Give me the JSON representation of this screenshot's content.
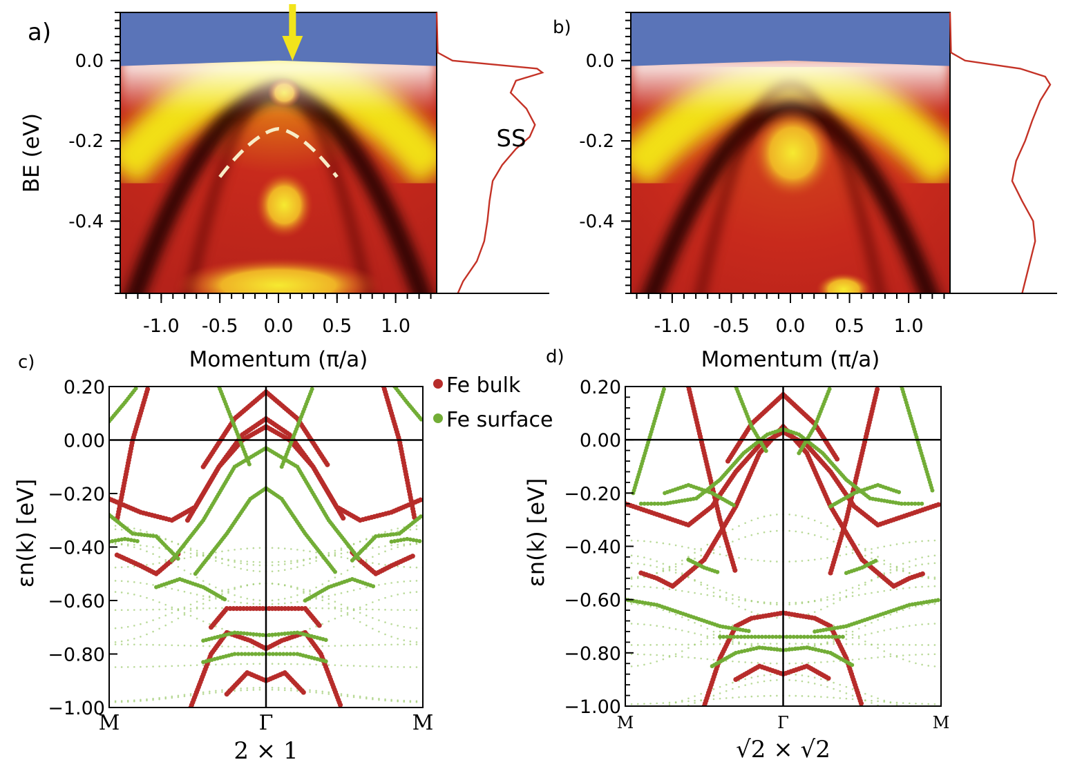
{
  "chart_data": [
    {
      "panel": "a)",
      "type": "heatmap",
      "xlabel": "Momentum (π/a)",
      "ylabel": "BE (eV)",
      "xlim": [
        -1.35,
        1.35
      ],
      "ylim": [
        -0.58,
        0.12
      ],
      "xticks": [
        "-1.0",
        "-0.5",
        "0.0",
        "0.5",
        "1.0"
      ],
      "xtick_values": [
        -1.0,
        -0.5,
        0.0,
        0.5,
        1.0
      ],
      "yticks": [
        "0.0",
        "-0.2",
        "-0.4"
      ],
      "ytick_values": [
        0.0,
        -0.2,
        -0.4
      ],
      "colormap": [
        "#5a74b8",
        "#ffffff",
        "#f4ea12",
        "#cc2a1c",
        "#1a0202"
      ],
      "annotation": "SS",
      "arrow_color": "#f2e41b",
      "arrow_x": 0.12,
      "dashed_arc": {
        "k_min": -0.5,
        "k_max": 0.5,
        "e_top": -0.17,
        "e_ends": -0.29
      },
      "edc_color": "#c43226",
      "edc": {
        "be": [
          0.12,
          0.02,
          0.0,
          -0.02,
          -0.03,
          -0.05,
          -0.08,
          -0.12,
          -0.16,
          -0.19,
          -0.22,
          -0.26,
          -0.3,
          -0.35,
          -0.4,
          -0.45,
          -0.5,
          -0.55,
          -0.58
        ],
        "intensity": [
          0.0,
          0.01,
          0.15,
          0.95,
          1.0,
          0.75,
          0.7,
          0.85,
          0.93,
          0.88,
          0.75,
          0.62,
          0.53,
          0.5,
          0.48,
          0.45,
          0.38,
          0.25,
          0.2
        ]
      }
    },
    {
      "panel": "b)",
      "type": "heatmap",
      "xlabel": "Momentum (π/a)",
      "ylabel": "",
      "xlim": [
        -1.35,
        1.35
      ],
      "ylim": [
        -0.58,
        0.12
      ],
      "xticks": [
        "-1.0",
        "-0.5",
        "0.0",
        "0.5",
        "1.0"
      ],
      "xtick_values": [
        -1.0,
        -0.5,
        0.0,
        0.5,
        1.0
      ],
      "yticks": [
        "0.0",
        "-0.2",
        "-0.4"
      ],
      "ytick_values": [
        0.0,
        -0.2,
        -0.4
      ],
      "colormap": [
        "#5a74b8",
        "#ffffff",
        "#f4ea12",
        "#cc2a1c",
        "#1a0202"
      ],
      "edc_color": "#c43226",
      "edc": {
        "be": [
          0.12,
          0.02,
          0.0,
          -0.02,
          -0.04,
          -0.06,
          -0.1,
          -0.15,
          -0.2,
          -0.25,
          -0.3,
          -0.35,
          -0.4,
          -0.45,
          -0.5,
          -0.55,
          -0.58
        ],
        "intensity": [
          0.0,
          0.01,
          0.15,
          0.7,
          0.95,
          1.0,
          0.9,
          0.82,
          0.75,
          0.66,
          0.62,
          0.72,
          0.83,
          0.85,
          0.8,
          0.75,
          0.72
        ]
      }
    },
    {
      "panel": "c)",
      "type": "scatter",
      "ylabel": "εn(k)  [eV]",
      "xlabel": "2 × 1",
      "xticks": [
        "M",
        "Γ",
        "M"
      ],
      "xtick_values": [
        -1,
        0,
        1
      ],
      "ylim": [
        -1.0,
        0.2
      ],
      "yticks": [
        "0.20",
        "0.00",
        "−0.20",
        "−0.40",
        "−0.60",
        "−0.80",
        "−1.00"
      ],
      "ytick_values": [
        0.2,
        0.0,
        -0.2,
        -0.4,
        -0.6,
        -0.8,
        -1.0
      ],
      "legend_position": "top-right",
      "series": [
        {
          "name": "Fe bulk",
          "color": "#b72c2a",
          "bands": [
            {
              "x": [
                -1,
                -0.8,
                -0.6,
                -0.45,
                -0.3,
                -0.15,
                0,
                0.15,
                0.3,
                0.45,
                0.6,
                0.8,
                1
              ],
              "y": [
                -0.22,
                -0.27,
                -0.3,
                -0.25,
                -0.1,
                0.0,
                0.05,
                0.0,
                -0.1,
                -0.25,
                -0.3,
                -0.27,
                -0.22
              ]
            },
            {
              "x": [
                -0.5,
                -0.3,
                -0.15,
                0,
                0.15,
                0.3,
                0.5
              ],
              "y": [
                -0.3,
                -0.1,
                0.02,
                0.08,
                0.02,
                -0.1,
                -0.3
              ]
            },
            {
              "x": [
                -0.4,
                -0.2,
                0,
                0.2,
                0.4
              ],
              "y": [
                -0.1,
                0.08,
                0.18,
                0.08,
                -0.1
              ]
            },
            {
              "x": [
                -0.95,
                -0.8,
                -0.7,
                -0.6,
                -0.55
              ],
              "y": [
                -0.43,
                -0.47,
                -0.5,
                -0.45,
                -0.42
              ]
            },
            {
              "x": [
                0.55,
                0.6,
                0.7,
                0.8,
                0.95
              ],
              "y": [
                -0.42,
                -0.45,
                -0.5,
                -0.47,
                -0.43
              ]
            },
            {
              "x": [
                -0.48,
                -0.35,
                -0.25,
                -0.1,
                0,
                0.1,
                0.25,
                0.35,
                0.48
              ],
              "y": [
                -1.0,
                -0.8,
                -0.72,
                -0.75,
                -0.78,
                -0.75,
                -0.72,
                -0.8,
                -1.0
              ]
            },
            {
              "x": [
                -0.35,
                -0.25,
                -0.1,
                0,
                0.1,
                0.25,
                0.35
              ],
              "y": [
                -0.7,
                -0.63,
                -0.63,
                -0.63,
                -0.63,
                -0.63,
                -0.7
              ]
            },
            {
              "x": [
                -0.25,
                -0.12,
                0,
                0.12,
                0.25
              ],
              "y": [
                -0.95,
                -0.87,
                -0.9,
                -0.87,
                -0.95
              ]
            },
            {
              "x": [
                -0.95,
                -0.85,
                -0.75
              ],
              "y": [
                -0.3,
                0.0,
                0.2
              ]
            },
            {
              "x": [
                0.75,
                0.85,
                0.95
              ],
              "y": [
                0.2,
                0.0,
                -0.3
              ]
            }
          ]
        },
        {
          "name": "Fe surface",
          "color": "#72ad36",
          "bands": [
            {
              "x": [
                -0.6,
                -0.4,
                -0.2,
                0,
                0.2,
                0.4,
                0.6
              ],
              "y": [
                -0.45,
                -0.3,
                -0.1,
                -0.03,
                -0.1,
                -0.3,
                -0.45
              ]
            },
            {
              "x": [
                -0.45,
                -0.25,
                -0.1,
                0,
                0.1,
                0.25,
                0.45
              ],
              "y": [
                -0.5,
                -0.35,
                -0.22,
                -0.18,
                -0.22,
                -0.35,
                -0.5
              ]
            },
            {
              "x": [
                -1,
                -0.85,
                -0.7,
                -0.55
              ],
              "y": [
                -0.28,
                -0.35,
                -0.36,
                -0.45
              ]
            },
            {
              "x": [
                0.55,
                0.7,
                0.85,
                1
              ],
              "y": [
                -0.45,
                -0.36,
                -0.35,
                -0.28
              ]
            },
            {
              "x": [
                -1,
                -0.9,
                -0.8
              ],
              "y": [
                -0.38,
                -0.37,
                -0.38
              ]
            },
            {
              "x": [
                0.8,
                0.9,
                1
              ],
              "y": [
                -0.38,
                -0.37,
                -0.38
              ]
            },
            {
              "x": [
                -0.4,
                -0.2,
                0,
                0.2,
                0.4
              ],
              "y": [
                -0.75,
                -0.72,
                -0.73,
                -0.72,
                -0.75
              ]
            },
            {
              "x": [
                -0.4,
                -0.2,
                0,
                0.2,
                0.4
              ],
              "y": [
                -0.83,
                -0.8,
                -0.8,
                -0.8,
                -0.83
              ]
            },
            {
              "x": [
                -1,
                -0.9,
                -0.82
              ],
              "y": [
                0.07,
                0.14,
                0.2
              ]
            },
            {
              "x": [
                0.82,
                0.9,
                1
              ],
              "y": [
                0.2,
                0.14,
                0.07
              ]
            },
            {
              "x": [
                -0.7,
                -0.55,
                -0.4,
                -0.25
              ],
              "y": [
                -0.55,
                -0.52,
                -0.55,
                -0.6
              ]
            },
            {
              "x": [
                0.25,
                0.4,
                0.55,
                0.7
              ],
              "y": [
                -0.6,
                -0.55,
                -0.52,
                -0.55
              ]
            },
            {
              "x": [
                -0.3,
                -0.2,
                -0.1
              ],
              "y": [
                0.2,
                0.05,
                -0.1
              ]
            },
            {
              "x": [
                0.1,
                0.2,
                0.3
              ],
              "y": [
                -0.1,
                0.05,
                0.2
              ]
            }
          ]
        }
      ]
    },
    {
      "panel": "d)",
      "type": "scatter",
      "ylabel": "εn(k)  [eV]",
      "xlabel": "√2 × √2",
      "xticks": [
        "M",
        "Γ",
        "M"
      ],
      "xtick_values": [
        -1,
        0,
        1
      ],
      "ylim": [
        -1.0,
        0.2
      ],
      "yticks": [
        "0.20",
        "0.00",
        "−0.20",
        "−0.40",
        "−0.60",
        "−0.80",
        "−1.00"
      ],
      "ytick_values": [
        0.2,
        0.0,
        -0.2,
        -0.4,
        -0.6,
        -0.8,
        -1.0
      ],
      "series": [
        {
          "name": "Fe bulk",
          "color": "#b72c2a",
          "bands": [
            {
              "x": [
                -1,
                -0.8,
                -0.6,
                -0.45,
                -0.3,
                -0.15,
                0,
                0.15,
                0.3,
                0.45,
                0.6,
                0.8,
                1
              ],
              "y": [
                -0.24,
                -0.28,
                -0.32,
                -0.25,
                -0.12,
                -0.02,
                0.03,
                -0.02,
                -0.12,
                -0.25,
                -0.32,
                -0.28,
                -0.24
              ]
            },
            {
              "x": [
                -0.7,
                -0.5,
                -0.3,
                -0.15,
                0,
                0.15,
                0.3,
                0.5,
                0.7
              ],
              "y": [
                -0.55,
                -0.45,
                -0.25,
                -0.05,
                0.05,
                -0.05,
                -0.25,
                -0.45,
                -0.55
              ]
            },
            {
              "x": [
                -0.35,
                -0.2,
                0,
                0.2,
                0.35
              ],
              "y": [
                -0.08,
                0.06,
                0.17,
                0.06,
                -0.08
              ]
            },
            {
              "x": [
                -0.9,
                -0.8,
                -0.7
              ],
              "y": [
                -0.5,
                -0.52,
                -0.55
              ]
            },
            {
              "x": [
                0.7,
                0.8,
                0.9
              ],
              "y": [
                -0.55,
                -0.52,
                -0.5
              ]
            },
            {
              "x": [
                -0.5,
                -0.4,
                -0.3,
                -0.2,
                0,
                0.2,
                0.3,
                0.4,
                0.5
              ],
              "y": [
                -1.0,
                -0.82,
                -0.7,
                -0.67,
                -0.65,
                -0.67,
                -0.7,
                -0.82,
                -1.0
              ]
            },
            {
              "x": [
                -0.3,
                -0.15,
                0,
                0.15,
                0.3
              ],
              "y": [
                -0.9,
                -0.85,
                -0.88,
                -0.85,
                -0.9
              ]
            },
            {
              "x": [
                -0.6,
                -0.5,
                -0.4,
                -0.3
              ],
              "y": [
                0.2,
                -0.05,
                -0.3,
                -0.5
              ]
            },
            {
              "x": [
                0.3,
                0.4,
                0.5,
                0.6
              ],
              "y": [
                -0.5,
                -0.3,
                -0.05,
                0.2
              ]
            }
          ]
        },
        {
          "name": "Fe surface",
          "color": "#72ad36",
          "bands": [
            {
              "x": [
                -0.9,
                -0.75,
                -0.55,
                -0.4,
                -0.25,
                -0.1,
                0,
                0.1,
                0.25,
                0.4,
                0.55,
                0.75,
                0.9
              ],
              "y": [
                -0.24,
                -0.24,
                -0.22,
                -0.15,
                -0.05,
                0.02,
                0.04,
                0.02,
                -0.05,
                -0.15,
                -0.22,
                -0.24,
                -0.24
              ]
            },
            {
              "x": [
                -0.75,
                -0.6,
                -0.45,
                -0.3
              ],
              "y": [
                -0.2,
                -0.17,
                -0.2,
                -0.25
              ]
            },
            {
              "x": [
                0.3,
                0.45,
                0.6,
                0.75
              ],
              "y": [
                -0.25,
                -0.2,
                -0.17,
                -0.2
              ]
            },
            {
              "x": [
                -1,
                -0.8,
                -0.6,
                -0.4,
                -0.2
              ],
              "y": [
                -0.6,
                -0.62,
                -0.66,
                -0.7,
                -0.72
              ]
            },
            {
              "x": [
                0.2,
                0.4,
                0.6,
                0.8,
                1
              ],
              "y": [
                -0.72,
                -0.7,
                -0.66,
                -0.62,
                -0.6
              ]
            },
            {
              "x": [
                -0.4,
                -0.2,
                0,
                0.2,
                0.4
              ],
              "y": [
                -0.74,
                -0.74,
                -0.74,
                -0.74,
                -0.74
              ]
            },
            {
              "x": [
                -0.45,
                -0.3,
                -0.15,
                0,
                0.15,
                0.3,
                0.45
              ],
              "y": [
                -0.85,
                -0.8,
                -0.78,
                -0.79,
                -0.78,
                -0.8,
                -0.85
              ]
            },
            {
              "x": [
                -0.95,
                -0.85,
                -0.75
              ],
              "y": [
                -0.2,
                0.0,
                0.2
              ]
            },
            {
              "x": [
                0.75,
                0.85,
                0.95
              ],
              "y": [
                0.2,
                0.0,
                -0.2
              ]
            },
            {
              "x": [
                -0.3,
                -0.2,
                -0.1
              ],
              "y": [
                0.2,
                0.05,
                -0.05
              ]
            },
            {
              "x": [
                0.1,
                0.2,
                0.3
              ],
              "y": [
                -0.05,
                0.05,
                0.2
              ]
            },
            {
              "x": [
                -0.6,
                -0.5,
                -0.4
              ],
              "y": [
                -0.45,
                -0.48,
                -0.5
              ]
            },
            {
              "x": [
                0.4,
                0.5,
                0.6
              ],
              "y": [
                -0.5,
                -0.48,
                -0.45
              ]
            }
          ]
        }
      ]
    }
  ]
}
